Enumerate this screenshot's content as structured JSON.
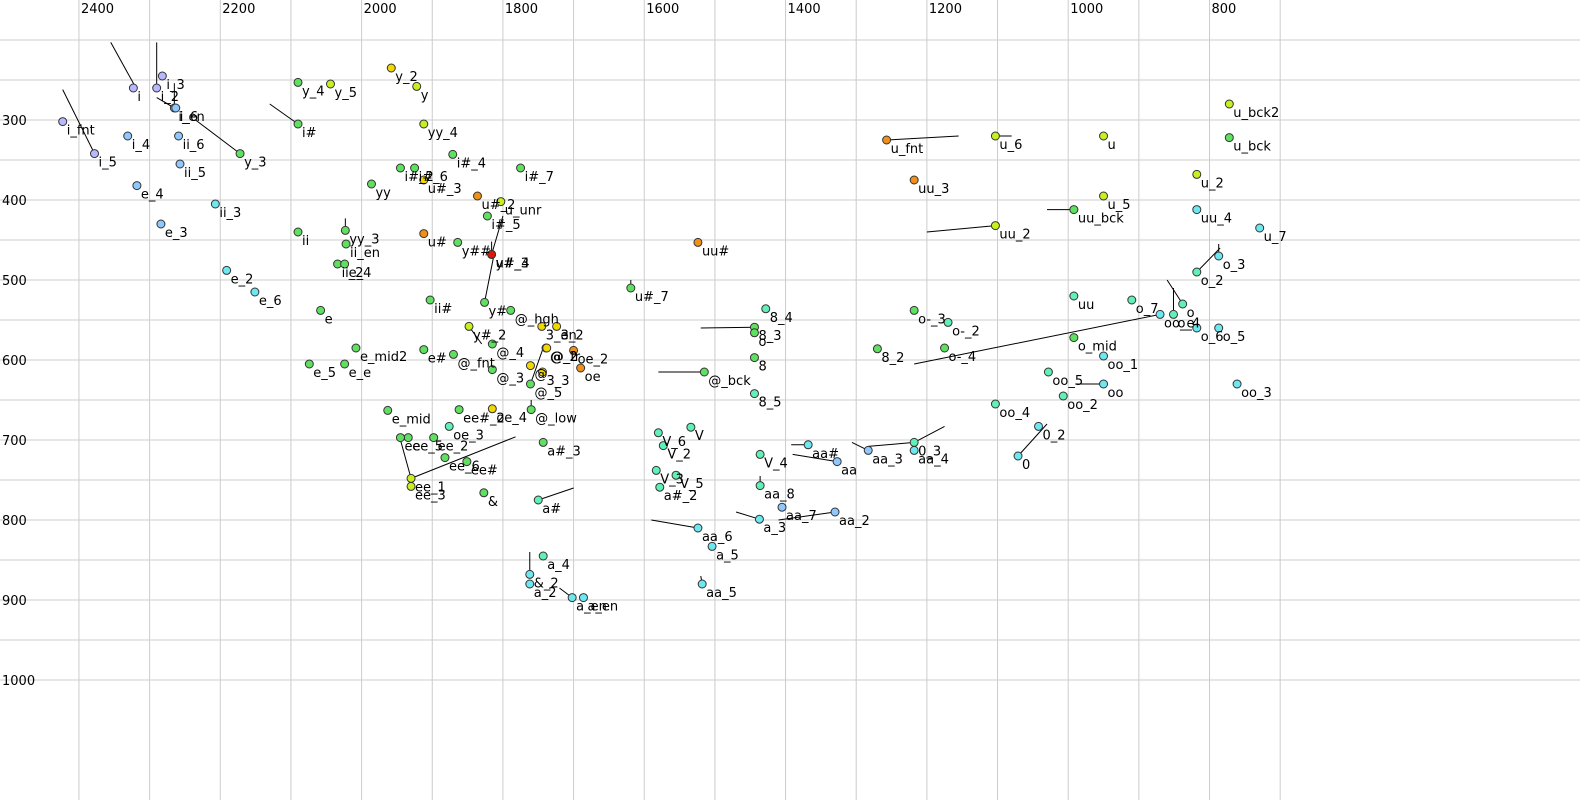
{
  "chart_data": {
    "type": "scatter",
    "title": "",
    "xlabel": "",
    "ylabel": "",
    "x_axis": "F2 (reversed)",
    "xlim": [
      2424,
      660
    ],
    "ylim": [
      1000,
      200
    ],
    "x_ticks": [
      2400,
      2200,
      2000,
      1800,
      1600,
      1400,
      1200,
      1000,
      800
    ],
    "y_ticks": [
      300,
      400,
      500,
      600,
      700,
      800,
      900,
      1000
    ],
    "grid": true,
    "colors": {
      "violet": "#b8b8ff",
      "blue": "#8fc8ff",
      "cyan": "#6ee8f0",
      "teal": "#60f0b8",
      "green": "#60e060",
      "yellowgreen": "#c8f020",
      "yellow": "#f0d800",
      "orange": "#f09018",
      "darkorange": "#e05810",
      "red": "#e01808"
    },
    "points": [
      {
        "label": "i_fnt",
        "x": 2423,
        "y": 302,
        "color": "violet"
      },
      {
        "label": "i_5",
        "x": 2378,
        "y": 342,
        "color": "violet"
      },
      {
        "label": "i_3",
        "x": 2282,
        "y": 245,
        "color": "violet"
      },
      {
        "label": "i",
        "x": 2323,
        "y": 260,
        "color": "violet"
      },
      {
        "label": "i_2",
        "x": 2290,
        "y": 260,
        "color": "violet"
      },
      {
        "label": "i_en",
        "x": 2265,
        "y": 285,
        "color": "blue"
      },
      {
        "label": "i_6",
        "x": 2263,
        "y": 285,
        "color": "blue"
      },
      {
        "label": "i_4",
        "x": 2331,
        "y": 320,
        "color": "blue"
      },
      {
        "label": "ii_6",
        "x": 2259,
        "y": 320,
        "color": "blue"
      },
      {
        "label": "ii_5",
        "x": 2257,
        "y": 355,
        "color": "blue"
      },
      {
        "label": "e_4",
        "x": 2318,
        "y": 382,
        "color": "blue"
      },
      {
        "label": "ii_3",
        "x": 2207,
        "y": 405,
        "color": "cyan"
      },
      {
        "label": "e_3",
        "x": 2284,
        "y": 430,
        "color": "blue"
      },
      {
        "label": "e_2",
        "x": 2191,
        "y": 488,
        "color": "cyan"
      },
      {
        "label": "e_6",
        "x": 2151,
        "y": 515,
        "color": "cyan"
      },
      {
        "label": "y_3",
        "x": 2172,
        "y": 342,
        "color": "green"
      },
      {
        "label": "y_4",
        "x": 2090,
        "y": 253,
        "color": "green"
      },
      {
        "label": "y_5",
        "x": 2044,
        "y": 255,
        "color": "yellowgreen"
      },
      {
        "label": "i#",
        "x": 2090,
        "y": 305,
        "color": "green"
      },
      {
        "label": "ii",
        "x": 2090,
        "y": 440,
        "color": "green"
      },
      {
        "label": "yy_3",
        "x": 2023,
        "y": 438,
        "color": "green"
      },
      {
        "label": "ii_en",
        "x": 2022,
        "y": 455,
        "color": "green"
      },
      {
        "label": "ii_2",
        "x": 2034,
        "y": 480,
        "color": "green"
      },
      {
        "label": "e_4",
        "x": 2024,
        "y": 480,
        "color": "green"
      },
      {
        "label": "e",
        "x": 2058,
        "y": 538,
        "color": "green"
      },
      {
        "label": "e_mid2",
        "x": 2008,
        "y": 585,
        "color": "green"
      },
      {
        "label": "e_5",
        "x": 2074,
        "y": 605,
        "color": "green"
      },
      {
        "label": "e_e",
        "x": 2024,
        "y": 605,
        "color": "green"
      },
      {
        "label": "e_mid",
        "x": 1963,
        "y": 663,
        "color": "green"
      },
      {
        "label": "y_2",
        "x": 1958,
        "y": 235,
        "color": "yellow"
      },
      {
        "label": "y",
        "x": 1922,
        "y": 258,
        "color": "yellowgreen"
      },
      {
        "label": "yy_4",
        "x": 1912,
        "y": 305,
        "color": "yellowgreen"
      },
      {
        "label": "yy",
        "x": 1986,
        "y": 380,
        "color": "green"
      },
      {
        "label": "i#_2",
        "x": 1945,
        "y": 360,
        "color": "green"
      },
      {
        "label": "i#_6",
        "x": 1925,
        "y": 360,
        "color": "green"
      },
      {
        "label": "u#_3",
        "x": 1912,
        "y": 375,
        "color": "yellow"
      },
      {
        "label": "i#_4",
        "x": 1871,
        "y": 343,
        "color": "green"
      },
      {
        "label": "u#",
        "x": 1912,
        "y": 442,
        "color": "orange"
      },
      {
        "label": "y##",
        "x": 1864,
        "y": 453,
        "color": "green"
      },
      {
        "label": "ii#",
        "x": 1903,
        "y": 525,
        "color": "green"
      },
      {
        "label": "e#",
        "x": 1912,
        "y": 587,
        "color": "green"
      },
      {
        "label": "@_fnt",
        "x": 1870,
        "y": 593,
        "color": "green"
      },
      {
        "label": "i#_7",
        "x": 1775,
        "y": 360,
        "color": "green"
      },
      {
        "label": "u#_2",
        "x": 1836,
        "y": 395,
        "color": "orange"
      },
      {
        "label": "i#_5",
        "x": 1822,
        "y": 420,
        "color": "green"
      },
      {
        "label": "u_unr",
        "x": 1803,
        "y": 402,
        "color": "yellowgreen"
      },
      {
        "label": "y#_3",
        "x": 1816,
        "y": 468,
        "color": "red"
      },
      {
        "label": "u#_4",
        "x": 1816,
        "y": 468,
        "color": "red"
      },
      {
        "label": "y#",
        "x": 1826,
        "y": 528,
        "color": "green"
      },
      {
        "label": "@_hgh",
        "x": 1789,
        "y": 538,
        "color": "green"
      },
      {
        "label": "y#_2",
        "x": 1848,
        "y": 558,
        "color": "yellowgreen"
      },
      {
        "label": "@_4",
        "x": 1815,
        "y": 580,
        "color": "green"
      },
      {
        "label": "3_en",
        "x": 1745,
        "y": 558,
        "color": "yellow"
      },
      {
        "label": "3_2",
        "x": 1724,
        "y": 558,
        "color": "yellow"
      },
      {
        "label": "@_2",
        "x": 1739,
        "y": 585,
        "color": "yellow"
      },
      {
        "label": "@_fr",
        "x": 1738,
        "y": 585,
        "color": "yellow"
      },
      {
        "label": "@_3",
        "x": 1815,
        "y": 612,
        "color": "green"
      },
      {
        "label": "@",
        "x": 1761,
        "y": 607,
        "color": "yellow"
      },
      {
        "label": "3_3",
        "x": 1744,
        "y": 615,
        "color": "yellow"
      },
      {
        "label": "@_5",
        "x": 1761,
        "y": 630,
        "color": "green"
      },
      {
        "label": "@_low",
        "x": 1760,
        "y": 662,
        "color": "green"
      },
      {
        "label": "oe_2",
        "x": 1700,
        "y": 588,
        "color": "orange"
      },
      {
        "label": "oe",
        "x": 1690,
        "y": 610,
        "color": "orange"
      },
      {
        "label": "ee#_2",
        "x": 1862,
        "y": 662,
        "color": "green"
      },
      {
        "label": "oe_4",
        "x": 1815,
        "y": 661,
        "color": "yellow"
      },
      {
        "label": "oe_3",
        "x": 1876,
        "y": 683,
        "color": "teal"
      },
      {
        "label": "ee_5",
        "x": 1934,
        "y": 697,
        "color": "green"
      },
      {
        "label": "ee_2",
        "x": 1898,
        "y": 697,
        "color": "green"
      },
      {
        "label": "ee",
        "x": 1945,
        "y": 697,
        "color": "green"
      },
      {
        "label": "ee_6",
        "x": 1882,
        "y": 722,
        "color": "green"
      },
      {
        "label": "ee#",
        "x": 1851,
        "y": 727,
        "color": "green"
      },
      {
        "label": "ee_1",
        "x": 1930,
        "y": 748,
        "color": "yellowgreen"
      },
      {
        "label": "ee_3",
        "x": 1930,
        "y": 758,
        "color": "yellowgreen"
      },
      {
        "label": "&",
        "x": 1827,
        "y": 766,
        "color": "green"
      },
      {
        "label": "a#_3",
        "x": 1743,
        "y": 703,
        "color": "green"
      },
      {
        "label": "a#",
        "x": 1750,
        "y": 775,
        "color": "teal"
      },
      {
        "label": "a_4",
        "x": 1743,
        "y": 845,
        "color": "teal"
      },
      {
        "label": "&_2",
        "x": 1762,
        "y": 868,
        "color": "cyan"
      },
      {
        "label": "a_2",
        "x": 1762,
        "y": 880,
        "color": "cyan"
      },
      {
        "label": "a_en",
        "x": 1686,
        "y": 897,
        "color": "cyan"
      },
      {
        "label": "a_en",
        "x": 1702,
        "y": 897,
        "color": "cyan"
      },
      {
        "label": "u#_7",
        "x": 1619,
        "y": 510,
        "color": "green"
      },
      {
        "label": "uu#",
        "x": 1524,
        "y": 453,
        "color": "orange"
      },
      {
        "label": "@_bck",
        "x": 1515,
        "y": 615,
        "color": "green"
      },
      {
        "label": "V",
        "x": 1534,
        "y": 684,
        "color": "teal"
      },
      {
        "label": "V_6",
        "x": 1580,
        "y": 691,
        "color": "teal"
      },
      {
        "label": "V_2",
        "x": 1573,
        "y": 707,
        "color": "teal"
      },
      {
        "label": "V_3",
        "x": 1583,
        "y": 738,
        "color": "teal"
      },
      {
        "label": "V_5",
        "x": 1555,
        "y": 744,
        "color": "teal"
      },
      {
        "label": "a#_2",
        "x": 1578,
        "y": 759,
        "color": "teal"
      },
      {
        "label": "aa_6",
        "x": 1524,
        "y": 810,
        "color": "cyan"
      },
      {
        "label": "a_5",
        "x": 1504,
        "y": 833,
        "color": "cyan"
      },
      {
        "label": "aa_5",
        "x": 1518,
        "y": 880,
        "color": "cyan"
      },
      {
        "label": "8_4",
        "x": 1428,
        "y": 536,
        "color": "teal"
      },
      {
        "label": "8_3",
        "x": 1444,
        "y": 559,
        "color": "green"
      },
      {
        "label": "o-",
        "x": 1444,
        "y": 566,
        "color": "green"
      },
      {
        "label": "8",
        "x": 1444,
        "y": 597,
        "color": "green"
      },
      {
        "label": "8_5",
        "x": 1444,
        "y": 642,
        "color": "teal"
      },
      {
        "label": "V_4",
        "x": 1436,
        "y": 718,
        "color": "teal"
      },
      {
        "label": "aa_8",
        "x": 1436,
        "y": 757,
        "color": "teal"
      },
      {
        "label": "a_3",
        "x": 1437,
        "y": 799,
        "color": "cyan"
      },
      {
        "label": "aa#",
        "x": 1368,
        "y": 706,
        "color": "cyan"
      },
      {
        "label": "aa",
        "x": 1327,
        "y": 727,
        "color": "blue"
      },
      {
        "label": "aa_7",
        "x": 1405,
        "y": 784,
        "color": "blue"
      },
      {
        "label": "aa_2",
        "x": 1330,
        "y": 790,
        "color": "blue"
      },
      {
        "label": "u_fnt",
        "x": 1257,
        "y": 325,
        "color": "orange"
      },
      {
        "label": "uu_3",
        "x": 1218,
        "y": 375,
        "color": "orange"
      },
      {
        "label": "u_6",
        "x": 1103,
        "y": 320,
        "color": "yellowgreen"
      },
      {
        "label": "uu_2",
        "x": 1103,
        "y": 432,
        "color": "yellowgreen"
      },
      {
        "label": "u",
        "x": 950,
        "y": 320,
        "color": "yellowgreen"
      },
      {
        "label": "u_5",
        "x": 950,
        "y": 395,
        "color": "yellowgreen"
      },
      {
        "label": "uu_bck",
        "x": 992,
        "y": 412,
        "color": "green"
      },
      {
        "label": "u_2",
        "x": 818,
        "y": 368,
        "color": "yellowgreen"
      },
      {
        "label": "uu_4",
        "x": 818,
        "y": 412,
        "color": "cyan"
      },
      {
        "label": "u_bck2",
        "x": 772,
        "y": 280,
        "color": "yellowgreen"
      },
      {
        "label": "u_bck",
        "x": 772,
        "y": 322,
        "color": "green"
      },
      {
        "label": "u_7",
        "x": 729,
        "y": 435,
        "color": "cyan"
      },
      {
        "label": "o_3",
        "x": 787,
        "y": 470,
        "color": "cyan"
      },
      {
        "label": "o_2",
        "x": 818,
        "y": 490,
        "color": "teal"
      },
      {
        "label": "o",
        "x": 838,
        "y": 530,
        "color": "teal"
      },
      {
        "label": "oo_e",
        "x": 870,
        "y": 543,
        "color": "cyan"
      },
      {
        "label": "o_4",
        "x": 851,
        "y": 543,
        "color": "teal"
      },
      {
        "label": "o_7",
        "x": 910,
        "y": 525,
        "color": "teal"
      },
      {
        "label": "o_6",
        "x": 818,
        "y": 560,
        "color": "cyan"
      },
      {
        "label": "o_5",
        "x": 787,
        "y": 560,
        "color": "cyan"
      },
      {
        "label": "uu",
        "x": 992,
        "y": 520,
        "color": "teal"
      },
      {
        "label": "o_mid",
        "x": 992,
        "y": 572,
        "color": "green"
      },
      {
        "label": "oo_1",
        "x": 950,
        "y": 595,
        "color": "cyan"
      },
      {
        "label": "oo",
        "x": 950,
        "y": 630,
        "color": "cyan"
      },
      {
        "label": "oo_3",
        "x": 761,
        "y": 630,
        "color": "cyan"
      },
      {
        "label": "oo_5",
        "x": 1028,
        "y": 615,
        "color": "teal"
      },
      {
        "label": "oo_2",
        "x": 1007,
        "y": 645,
        "color": "teal"
      },
      {
        "label": "oo_4",
        "x": 1103,
        "y": 655,
        "color": "teal"
      },
      {
        "label": "o-_3",
        "x": 1218,
        "y": 538,
        "color": "green"
      },
      {
        "label": "o-_2",
        "x": 1170,
        "y": 553,
        "color": "teal"
      },
      {
        "label": "o-_4",
        "x": 1175,
        "y": 585,
        "color": "green"
      },
      {
        "label": "8_2",
        "x": 1270,
        "y": 586,
        "color": "green"
      },
      {
        "label": "0_3",
        "x": 1218,
        "y": 703,
        "color": "teal"
      },
      {
        "label": "aa_4",
        "x": 1218,
        "y": 713,
        "color": "cyan"
      },
      {
        "label": "aa_3",
        "x": 1283,
        "y": 713,
        "color": "blue"
      },
      {
        "label": "0_2",
        "x": 1042,
        "y": 683,
        "color": "cyan"
      },
      {
        "label": "0",
        "x": 1071,
        "y": 720,
        "color": "cyan"
      }
    ],
    "segments": [
      [
        2423,
        262,
        2378,
        342
      ],
      [
        2355,
        203,
        2318,
        262
      ],
      [
        2290,
        203,
        2290,
        255
      ],
      [
        2265,
        254,
        2265,
        285
      ],
      [
        2280,
        277,
        2265,
        285
      ],
      [
        2290,
        272,
        2265,
        285
      ],
      [
        2235,
        300,
        2172,
        342
      ],
      [
        2130,
        280,
        2090,
        305
      ],
      [
        2023,
        423,
        2023,
        438
      ],
      [
        1945,
        700,
        1930,
        748
      ],
      [
        1782,
        696,
        1930,
        748
      ],
      [
        1800,
        420,
        1816,
        468
      ],
      [
        1813,
        470,
        1826,
        528
      ],
      [
        1790,
        538,
        1790,
        538
      ],
      [
        1848,
        558,
        1830,
        580
      ],
      [
        1816,
        465,
        1816,
        452
      ],
      [
        1836,
        395,
        1840,
        395
      ],
      [
        1700,
        588,
        1700,
        588
      ],
      [
        1743,
        585,
        1761,
        630
      ],
      [
        1760,
        662,
        1760,
        650
      ],
      [
        1750,
        775,
        1700,
        760
      ],
      [
        1762,
        868,
        1762,
        840
      ],
      [
        1702,
        897,
        1720,
        885
      ],
      [
        1619,
        510,
        1619,
        500
      ],
      [
        1524,
        810,
        1590,
        800
      ],
      [
        1515,
        615,
        1580,
        615
      ],
      [
        1518,
        880,
        1520,
        870
      ],
      [
        1444,
        559,
        1520,
        560
      ],
      [
        1436,
        757,
        1436,
        745
      ],
      [
        1437,
        799,
        1470,
        790
      ],
      [
        1368,
        706,
        1392,
        706
      ],
      [
        1330,
        790,
        1410,
        800
      ],
      [
        1327,
        727,
        1390,
        718
      ],
      [
        1283,
        713,
        1306,
        703
      ],
      [
        1218,
        703,
        1283,
        708
      ],
      [
        1218,
        703,
        1175,
        683
      ],
      [
        1257,
        325,
        1155,
        320
      ],
      [
        1103,
        432,
        1200,
        440
      ],
      [
        1103,
        320,
        1080,
        320
      ],
      [
        992,
        412,
        1030,
        412
      ],
      [
        818,
        490,
        785,
        460
      ],
      [
        787,
        470,
        787,
        455
      ],
      [
        851,
        543,
        851,
        510
      ],
      [
        838,
        530,
        860,
        500
      ],
      [
        870,
        543,
        1218,
        605
      ],
      [
        1071,
        720,
        1030,
        680
      ],
      [
        950,
        630,
        990,
        630
      ]
    ]
  }
}
